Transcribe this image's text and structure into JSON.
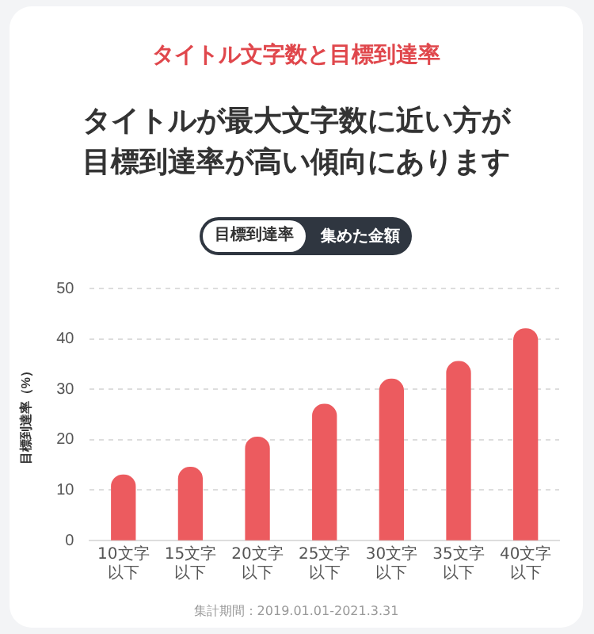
{
  "chart_data": {
    "type": "bar",
    "title": "タイトル文字数と目標到達率",
    "subtitle": "タイトルが最大文字数に近い方が目標到達率が高い傾向にあります",
    "ylabel": "目標到達率（%）",
    "categories": [
      "10文字以下",
      "15文字以下",
      "20文字以下",
      "25文字以下",
      "30文字以下",
      "35文字以下",
      "40文字以下"
    ],
    "values": [
      13,
      14.5,
      20.5,
      27,
      32,
      35.5,
      42
    ],
    "color": "#ec5b5f",
    "ylim": [
      0,
      50
    ],
    "yticks": [
      0,
      10,
      20,
      30,
      40,
      50
    ],
    "grid": "y",
    "legend": false,
    "annotations": [
      "目標到達率",
      "集めた金額",
      "集計期間：2019.01.01-2021.3.31"
    ]
  }
}
